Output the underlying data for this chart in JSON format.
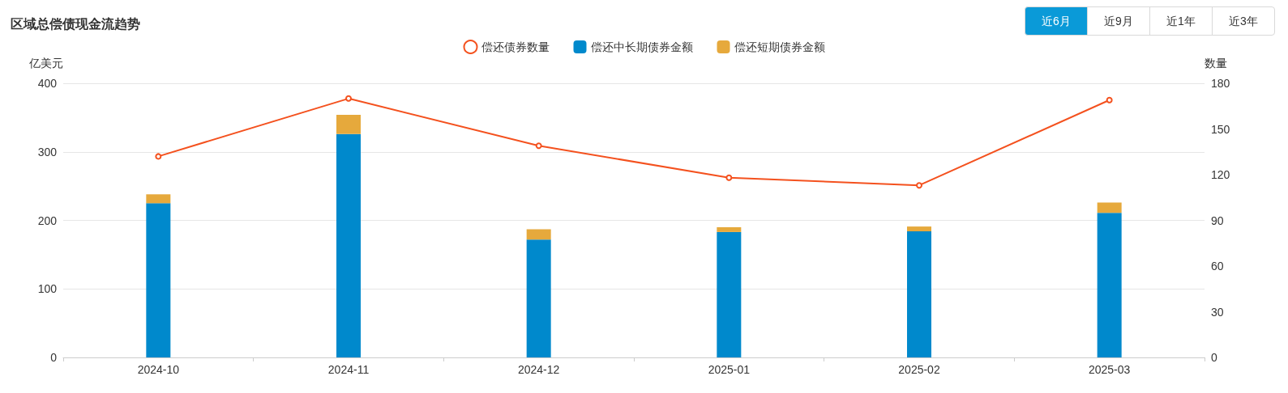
{
  "chart_data": {
    "type": "bar",
    "title": "区域总偿债现金流趋势",
    "ylabel": "亿美元",
    "y2label": "数量",
    "annotations": [
      "近6月",
      "近9月",
      "近1年",
      "近3年"
    ],
    "categories": [
      "2024-10",
      "2024-11",
      "2024-12",
      "2025-01",
      "2025-02",
      "2025-03"
    ],
    "stacked": true,
    "series": [
      {
        "name": "偿还债券数量",
        "type": "line",
        "axis": "y2",
        "color": "#f4511e",
        "marker": "circle",
        "values": [
          132,
          170,
          139,
          118,
          113,
          169
        ]
      },
      {
        "name": "偿还中长期债券金额",
        "color": "#0089cc",
        "values": [
          225,
          326,
          172,
          183,
          184,
          211
        ]
      },
      {
        "name": "偿还短期债券金额",
        "color": "#e6a93c",
        "values": [
          13,
          28,
          15,
          7,
          7,
          15
        ]
      }
    ],
    "ylim": [
      0,
      400
    ],
    "yticks": [
      0,
      100,
      200,
      300,
      400
    ],
    "y2lim": [
      0,
      180
    ],
    "y2ticks": [
      0,
      30,
      60,
      90,
      120,
      150,
      180
    ],
    "grid": "y",
    "legend": "top"
  }
}
